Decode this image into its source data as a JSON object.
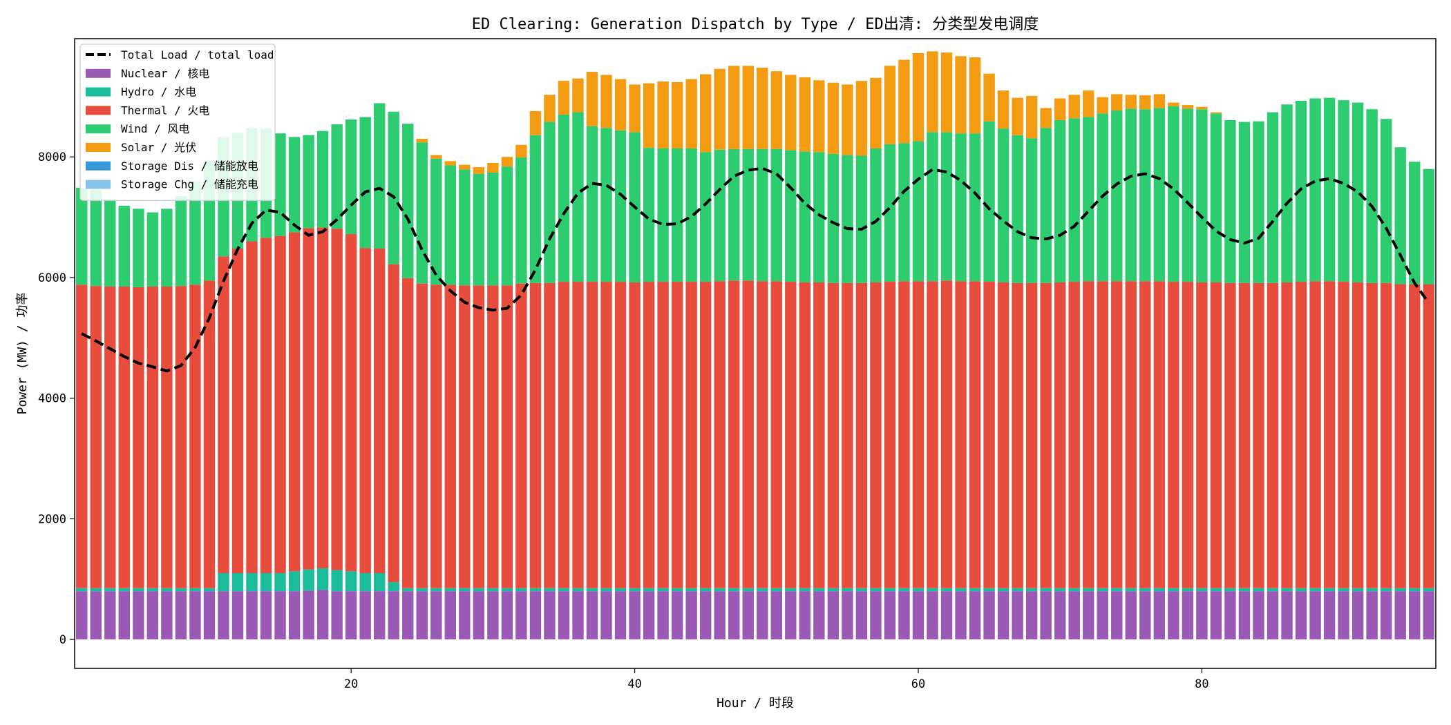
{
  "chart_data": {
    "type": "bar",
    "stacked": true,
    "title": "ED Clearing: Generation Dispatch by Type / ED出清: 分类型发电调度",
    "xlabel": "Hour / 时段",
    "ylabel": "Power (MW) / 功率",
    "xlim": [
      0.5,
      96.5
    ],
    "ylim": [
      -480,
      9960
    ],
    "x_ticks": [
      20,
      40,
      60,
      80
    ],
    "y_ticks": [
      0,
      2000,
      4000,
      6000,
      8000
    ],
    "legend_position": "upper-left",
    "grid": false,
    "x": [
      1,
      2,
      3,
      4,
      5,
      6,
      7,
      8,
      9,
      10,
      11,
      12,
      13,
      14,
      15,
      16,
      17,
      18,
      19,
      20,
      21,
      22,
      23,
      24,
      25,
      26,
      27,
      28,
      29,
      30,
      31,
      32,
      33,
      34,
      35,
      36,
      37,
      38,
      39,
      40,
      41,
      42,
      43,
      44,
      45,
      46,
      47,
      48,
      49,
      50,
      51,
      52,
      53,
      54,
      55,
      56,
      57,
      58,
      59,
      60,
      61,
      62,
      63,
      64,
      65,
      66,
      67,
      68,
      69,
      70,
      71,
      72,
      73,
      74,
      75,
      76,
      77,
      78,
      79,
      80,
      81,
      82,
      83,
      84,
      85,
      86,
      87,
      88,
      89,
      90,
      91,
      92,
      93,
      94,
      95,
      96
    ],
    "series": [
      {
        "name": "Nuclear / 核电",
        "color": "#9b59b6",
        "values": [
          800,
          800,
          800,
          800,
          800,
          800,
          800,
          800,
          800,
          800,
          800,
          800,
          800,
          800,
          800,
          800,
          810,
          820,
          800,
          800,
          800,
          800,
          800,
          800,
          800,
          800,
          800,
          800,
          800,
          800,
          800,
          800,
          800,
          800,
          800,
          800,
          800,
          800,
          800,
          800,
          800,
          800,
          800,
          800,
          800,
          800,
          800,
          800,
          800,
          800,
          800,
          800,
          800,
          800,
          800,
          800,
          800,
          800,
          800,
          800,
          800,
          800,
          800,
          800,
          800,
          800,
          800,
          800,
          800,
          800,
          800,
          800,
          800,
          800,
          800,
          800,
          800,
          800,
          800,
          800,
          800,
          800,
          800,
          800,
          800,
          800,
          800,
          800,
          800,
          800,
          800,
          800,
          800,
          800,
          800,
          800
        ]
      },
      {
        "name": "Hydro / 水电",
        "color": "#1abc9c",
        "values": [
          50,
          50,
          50,
          50,
          50,
          50,
          50,
          50,
          50,
          50,
          300,
          300,
          300,
          300,
          300,
          330,
          350,
          360,
          350,
          330,
          300,
          300,
          150,
          50,
          50,
          50,
          50,
          50,
          50,
          50,
          50,
          50,
          50,
          50,
          50,
          50,
          50,
          50,
          50,
          50,
          50,
          50,
          50,
          50,
          50,
          50,
          50,
          50,
          50,
          50,
          50,
          50,
          50,
          50,
          50,
          50,
          50,
          50,
          50,
          50,
          50,
          50,
          50,
          50,
          50,
          50,
          50,
          50,
          50,
          50,
          50,
          50,
          50,
          50,
          50,
          50,
          50,
          50,
          50,
          50,
          50,
          50,
          50,
          50,
          50,
          50,
          50,
          50,
          50,
          50,
          50,
          50,
          50,
          50,
          50,
          50
        ]
      },
      {
        "name": "Thermal / 火电",
        "color": "#e74c3c",
        "values": [
          5030,
          5010,
          5000,
          5000,
          4990,
          5000,
          5000,
          5010,
          5030,
          5100,
          5250,
          5380,
          5500,
          5560,
          5590,
          5620,
          5660,
          5650,
          5660,
          5590,
          5390,
          5380,
          5270,
          5140,
          5050,
          5030,
          5030,
          5020,
          5020,
          5020,
          5020,
          5050,
          5060,
          5060,
          5080,
          5080,
          5080,
          5080,
          5080,
          5070,
          5080,
          5080,
          5080,
          5080,
          5080,
          5090,
          5100,
          5100,
          5090,
          5090,
          5080,
          5070,
          5070,
          5060,
          5060,
          5060,
          5070,
          5080,
          5090,
          5090,
          5090,
          5100,
          5090,
          5090,
          5080,
          5070,
          5060,
          5060,
          5060,
          5070,
          5080,
          5090,
          5090,
          5090,
          5090,
          5090,
          5090,
          5080,
          5080,
          5070,
          5070,
          5060,
          5060,
          5060,
          5060,
          5070,
          5080,
          5090,
          5090,
          5080,
          5070,
          5060,
          5060,
          5040,
          5040,
          5040
        ]
      },
      {
        "name": "Wind / 风电",
        "color": "#2ecc71",
        "values": [
          1610,
          1590,
          1450,
          1340,
          1300,
          1230,
          1290,
          1490,
          1720,
          1990,
          1980,
          1920,
          1880,
          1810,
          1700,
          1580,
          1540,
          1600,
          1730,
          1900,
          2170,
          2410,
          2530,
          2560,
          2340,
          2090,
          1980,
          1920,
          1850,
          1870,
          1970,
          2090,
          2450,
          2670,
          2770,
          2810,
          2580,
          2550,
          2510,
          2490,
          2220,
          2210,
          2210,
          2210,
          2150,
          2180,
          2180,
          2180,
          2190,
          2190,
          2180,
          2170,
          2160,
          2140,
          2120,
          2110,
          2220,
          2280,
          2290,
          2320,
          2470,
          2460,
          2450,
          2450,
          2660,
          2550,
          2450,
          2400,
          2570,
          2690,
          2710,
          2720,
          2780,
          2830,
          2860,
          2850,
          2870,
          2910,
          2870,
          2870,
          2800,
          2700,
          2670,
          2680,
          2830,
          2950,
          3000,
          3030,
          3040,
          3010,
          2980,
          2880,
          2720,
          2270,
          2030,
          1910
        ]
      },
      {
        "name": "Solar / 光伏",
        "color": "#f39c12",
        "values": [
          0,
          0,
          0,
          0,
          0,
          0,
          0,
          0,
          0,
          0,
          0,
          0,
          0,
          0,
          0,
          0,
          0,
          0,
          0,
          0,
          0,
          0,
          0,
          0,
          60,
          60,
          70,
          80,
          110,
          160,
          160,
          210,
          400,
          450,
          560,
          560,
          900,
          880,
          850,
          790,
          1070,
          1110,
          1100,
          1150,
          1290,
          1340,
          1380,
          1380,
          1350,
          1290,
          1250,
          1230,
          1190,
          1180,
          1170,
          1240,
          1170,
          1300,
          1380,
          1460,
          1340,
          1320,
          1280,
          1260,
          790,
          630,
          620,
          700,
          330,
          360,
          390,
          440,
          270,
          270,
          230,
          230,
          230,
          60,
          60,
          40,
          20,
          0,
          0,
          0,
          0,
          0,
          0,
          0,
          0,
          0,
          0,
          0,
          0,
          0,
          0,
          0
        ]
      },
      {
        "name": "Storage Dis / 储能放电",
        "color": "#3498db",
        "values": [
          0,
          0,
          0,
          0,
          0,
          0,
          0,
          0,
          0,
          0,
          0,
          0,
          0,
          0,
          0,
          0,
          0,
          0,
          0,
          0,
          0,
          0,
          0,
          0,
          0,
          0,
          0,
          0,
          0,
          0,
          0,
          0,
          0,
          0,
          0,
          0,
          0,
          0,
          0,
          0,
          0,
          0,
          0,
          0,
          0,
          0,
          0,
          0,
          0,
          0,
          0,
          0,
          0,
          0,
          0,
          0,
          0,
          0,
          0,
          0,
          0,
          0,
          0,
          0,
          0,
          0,
          0,
          0,
          0,
          0,
          0,
          0,
          0,
          0,
          0,
          0,
          0,
          0,
          0,
          0,
          0,
          0,
          0,
          0,
          0,
          0,
          0,
          0,
          0,
          0,
          0,
          0,
          0,
          0,
          0,
          0
        ]
      },
      {
        "name": "Storage Chg / 储能充电",
        "color": "#85c1e9",
        "values": [
          0,
          0,
          0,
          0,
          0,
          0,
          0,
          0,
          0,
          0,
          0,
          0,
          0,
          0,
          0,
          0,
          0,
          0,
          0,
          0,
          0,
          0,
          0,
          0,
          0,
          0,
          0,
          0,
          0,
          0,
          0,
          0,
          0,
          0,
          0,
          0,
          0,
          0,
          0,
          0,
          0,
          0,
          0,
          0,
          0,
          0,
          0,
          0,
          0,
          0,
          0,
          0,
          0,
          0,
          0,
          0,
          0,
          0,
          0,
          0,
          0,
          0,
          0,
          0,
          0,
          0,
          0,
          0,
          0,
          0,
          0,
          0,
          0,
          0,
          0,
          0,
          0,
          0,
          0,
          0,
          0,
          0,
          0,
          0,
          0,
          0,
          0,
          0,
          0,
          0,
          0,
          0,
          0,
          0,
          0,
          0
        ]
      }
    ],
    "line": {
      "name": "Total Load / total load",
      "color": "#000000",
      "style": "dashed",
      "values": [
        5070,
        4950,
        4820,
        4690,
        4580,
        4520,
        4450,
        4540,
        4840,
        5330,
        5940,
        6470,
        6900,
        7120,
        7080,
        6870,
        6700,
        6760,
        6960,
        7200,
        7420,
        7480,
        7340,
        6970,
        6460,
        6040,
        5780,
        5590,
        5500,
        5460,
        5490,
        5710,
        6130,
        6640,
        7060,
        7400,
        7560,
        7530,
        7380,
        7170,
        6970,
        6880,
        6890,
        7010,
        7220,
        7460,
        7680,
        7780,
        7810,
        7720,
        7490,
        7230,
        7040,
        6910,
        6810,
        6800,
        6930,
        7160,
        7430,
        7630,
        7790,
        7750,
        7610,
        7400,
        7140,
        6940,
        6760,
        6660,
        6640,
        6700,
        6850,
        7100,
        7350,
        7550,
        7680,
        7720,
        7640,
        7470,
        7240,
        7000,
        6770,
        6630,
        6570,
        6650,
        6930,
        7230,
        7470,
        7600,
        7640,
        7560,
        7420,
        7180,
        6820,
        6370,
        5910,
        5580
      ]
    }
  }
}
